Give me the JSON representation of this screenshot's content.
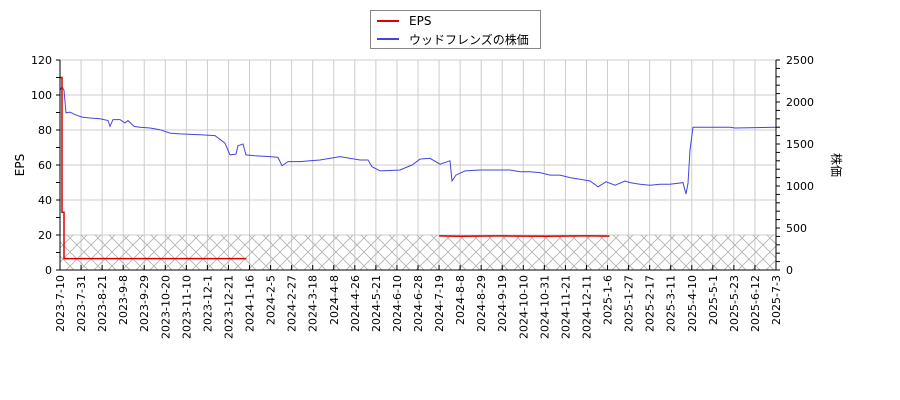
{
  "legend": {
    "items": [
      {
        "label": "EPS",
        "color": "#dd0000"
      },
      {
        "label": "ウッドフレンズの株価",
        "color": "#4444dd"
      }
    ]
  },
  "axes": {
    "left_title": "EPS",
    "right_title": "株価",
    "left_ticks": [
      "0",
      "20",
      "40",
      "60",
      "80",
      "100",
      "120"
    ],
    "right_ticks": [
      "0",
      "500",
      "1000",
      "1500",
      "2000",
      "2500"
    ]
  },
  "chart_data": {
    "type": "line",
    "title": "",
    "xlabel": "",
    "ylabel": "EPS",
    "ylabel_right": "株価",
    "ylim": [
      0,
      120
    ],
    "ylim_right": [
      0,
      2500
    ],
    "grid": true,
    "legend_position": "top-center",
    "categories": [
      "2023-7-10",
      "2023-7-31",
      "2023-8-21",
      "2023-9-8",
      "2023-9-29",
      "2023-10-20",
      "2023-11-10",
      "2023-12-1",
      "2023-12-21",
      "2024-1-16",
      "2024-2-5",
      "2024-2-27",
      "2024-3-18",
      "2024-4-8",
      "2024-4-26",
      "2024-5-21",
      "2024-6-10",
      "2024-6-28",
      "2024-7-19",
      "2024-8-8",
      "2024-8-29",
      "2024-9-19",
      "2024-10-10",
      "2024-10-31",
      "2024-11-21",
      "2024-12-11",
      "2025-1-6",
      "2025-1-27",
      "2025-2-17",
      "2025-3-11",
      "2025-4-10",
      "2025-5-1",
      "2025-5-23",
      "2025-6-12",
      "2025-7-3"
    ],
    "hatched_region": {
      "ymin": 0,
      "ymax": 20,
      "axis": "left"
    },
    "series": [
      {
        "name": "EPS",
        "axis": "left",
        "color": "#dd0000",
        "segments": [
          [
            {
              "x": "2023-7-10",
              "y": 110
            },
            {
              "x": "2023-7-12",
              "y": 110
            },
            {
              "x": "2023-7-12",
              "y": 33
            },
            {
              "x": "2023-7-14",
              "y": 33
            },
            {
              "x": "2023-7-14",
              "y": 6.5
            },
            {
              "x": "2024-1-12",
              "y": 6.5
            }
          ],
          [
            {
              "x": "2024-7-19",
              "y": 19.5
            },
            {
              "x": "2024-8-8",
              "y": 19.3
            },
            {
              "x": "2024-9-19",
              "y": 19.5
            },
            {
              "x": "2024-10-31",
              "y": 19.3
            },
            {
              "x": "2024-12-11",
              "y": 19.5
            },
            {
              "x": "2025-1-8",
              "y": 19.4
            }
          ]
        ]
      },
      {
        "name": "ウッドフレンズの株価",
        "axis": "right",
        "color": "#4444dd",
        "points": [
          [
            60,
            2140
          ],
          [
            62,
            2180
          ],
          [
            64,
            2140
          ],
          [
            66,
            1870
          ],
          [
            70,
            1880
          ],
          [
            75,
            1850
          ],
          [
            82,
            1820
          ],
          [
            90,
            1810
          ],
          [
            100,
            1800
          ],
          [
            108,
            1780
          ],
          [
            110,
            1710
          ],
          [
            113,
            1790
          ],
          [
            120,
            1790
          ],
          [
            125,
            1750
          ],
          [
            128,
            1780
          ],
          [
            134,
            1710
          ],
          [
            140,
            1700
          ],
          [
            150,
            1690
          ],
          [
            160,
            1670
          ],
          [
            170,
            1630
          ],
          [
            180,
            1620
          ],
          [
            200,
            1610
          ],
          [
            215,
            1600
          ],
          [
            225,
            1510
          ],
          [
            230,
            1370
          ],
          [
            236,
            1380
          ],
          [
            238,
            1480
          ],
          [
            243,
            1500
          ],
          [
            246,
            1370
          ],
          [
            255,
            1360
          ],
          [
            270,
            1350
          ],
          [
            278,
            1340
          ],
          [
            282,
            1240
          ],
          [
            288,
            1290
          ],
          [
            300,
            1290
          ],
          [
            310,
            1300
          ],
          [
            320,
            1310
          ],
          [
            340,
            1350
          ],
          [
            360,
            1310
          ],
          [
            368,
            1310
          ],
          [
            372,
            1230
          ],
          [
            380,
            1180
          ],
          [
            400,
            1190
          ],
          [
            412,
            1250
          ],
          [
            420,
            1320
          ],
          [
            430,
            1330
          ],
          [
            440,
            1260
          ],
          [
            450,
            1300
          ],
          [
            452,
            1060
          ],
          [
            456,
            1130
          ],
          [
            465,
            1180
          ],
          [
            480,
            1190
          ],
          [
            500,
            1190
          ],
          [
            510,
            1190
          ],
          [
            520,
            1170
          ],
          [
            530,
            1170
          ],
          [
            540,
            1160
          ],
          [
            550,
            1130
          ],
          [
            560,
            1130
          ],
          [
            570,
            1100
          ],
          [
            580,
            1080
          ],
          [
            590,
            1060
          ],
          [
            598,
            990
          ],
          [
            606,
            1050
          ],
          [
            615,
            1010
          ],
          [
            625,
            1060
          ],
          [
            630,
            1040
          ],
          [
            640,
            1020
          ],
          [
            650,
            1010
          ],
          [
            660,
            1020
          ],
          [
            670,
            1020
          ],
          [
            683,
            1040
          ],
          [
            686,
            905
          ],
          [
            688,
            1030
          ],
          [
            690,
            1430
          ],
          [
            693,
            1700
          ],
          [
            710,
            1700
          ],
          [
            730,
            1700
          ],
          [
            735,
            1690
          ],
          [
            776,
            1700
          ]
        ],
        "points_note": "x in pixel position along date axis, y in price (right axis)"
      }
    ]
  }
}
